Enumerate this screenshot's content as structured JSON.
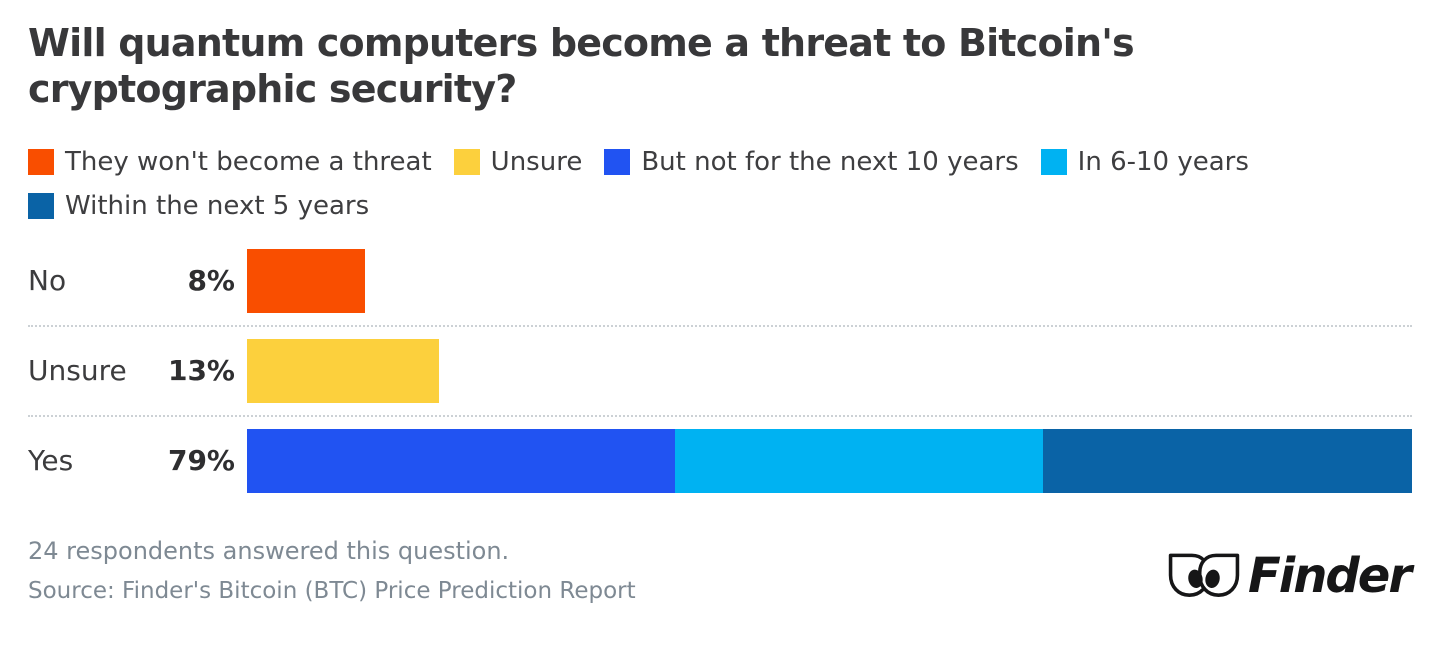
{
  "title": "Will quantum computers become a threat to Bitcoin's cryptographic security?",
  "colors": {
    "orange": "#f94e00",
    "yellow": "#fcd03d",
    "blue": "#2153f2",
    "light_blue": "#00b2f2",
    "dark_blue": "#0a63a6"
  },
  "legend": [
    {
      "label": "They won't become a threat",
      "color": "#f94e00"
    },
    {
      "label": "Unsure",
      "color": "#fcd03d"
    },
    {
      "label": "But not for the next 10 years",
      "color": "#2153f2"
    },
    {
      "label": "In 6-10 years",
      "color": "#00b2f2"
    },
    {
      "label": "Within the next 5 years",
      "color": "#0a63a6"
    }
  ],
  "chart_data": {
    "type": "bar",
    "orientation": "horizontal",
    "stacked": true,
    "axis_max": 79,
    "grid": false,
    "legend_position": "top",
    "categories": [
      "No",
      "Unsure",
      "Yes"
    ],
    "rows": [
      {
        "category": "No",
        "total": 8,
        "total_label": "8%",
        "segments": [
          {
            "name": "They won't become a threat",
            "value": 8,
            "color": "#f94e00"
          }
        ]
      },
      {
        "category": "Unsure",
        "total": 13,
        "total_label": "13%",
        "segments": [
          {
            "name": "Unsure",
            "value": 13,
            "color": "#fcd03d"
          }
        ]
      },
      {
        "category": "Yes",
        "total": 79,
        "total_label": "79%",
        "segments": [
          {
            "name": "But not for the next 10 years",
            "value": 29,
            "color": "#2153f2"
          },
          {
            "name": "In 6-10 years",
            "value": 25,
            "color": "#00b2f2"
          },
          {
            "name": "Within the next 5 years",
            "value": 25,
            "color": "#0a63a6"
          }
        ]
      }
    ]
  },
  "footer": {
    "respondents": "24 respondents answered this question.",
    "source": "Source: Finder's Bitcoin (BTC) Price Prediction Report"
  },
  "logo": {
    "text": "Finder"
  }
}
